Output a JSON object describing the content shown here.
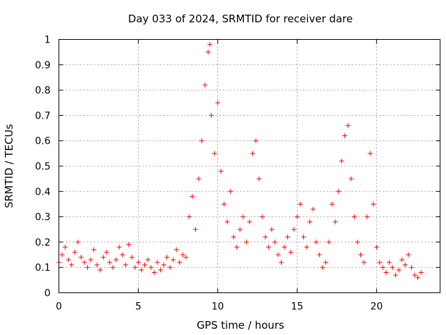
{
  "chart_data": {
    "type": "scatter",
    "title": "Day 033 of 2024, SRMTID for receiver dare",
    "xlabel": "GPS time / hours",
    "ylabel": "SRMTID / TECUs",
    "xlim": [
      0,
      24
    ],
    "ylim": [
      0,
      1
    ],
    "xticks": [
      0,
      5,
      10,
      15,
      20
    ],
    "xtick_labels": [
      "0",
      "5",
      "10",
      "15",
      "20"
    ],
    "yticks": [
      0,
      0.1,
      0.2,
      0.3,
      0.4,
      0.5,
      0.6,
      0.7,
      0.8,
      0.9,
      1
    ],
    "ytick_labels": [
      "0",
      "0.1",
      "0.2",
      "0.3",
      "0.4",
      "0.5",
      "0.6",
      "0.7",
      "0.8",
      "0.9",
      "1"
    ],
    "grid": true,
    "marker": "+",
    "color": "#ff0000",
    "series": [
      {
        "name": "SRMTID",
        "x": [
          0.0,
          0.2,
          0.4,
          0.6,
          0.8,
          1.0,
          1.2,
          1.4,
          1.6,
          1.8,
          2.0,
          2.2,
          2.4,
          2.6,
          2.8,
          3.0,
          3.2,
          3.4,
          3.6,
          3.8,
          4.0,
          4.2,
          4.4,
          4.6,
          4.8,
          5.0,
          5.2,
          5.4,
          5.6,
          5.8,
          6.0,
          6.2,
          6.4,
          6.6,
          6.8,
          7.0,
          7.2,
          7.4,
          7.6,
          7.8,
          8.0,
          8.2,
          8.4,
          8.6,
          8.8,
          9.0,
          9.2,
          9.4,
          9.5,
          9.6,
          9.8,
          10.0,
          10.2,
          10.4,
          10.6,
          10.8,
          11.0,
          11.2,
          11.4,
          11.6,
          11.8,
          12.0,
          12.2,
          12.4,
          12.6,
          12.8,
          13.0,
          13.2,
          13.4,
          13.6,
          13.8,
          14.0,
          14.2,
          14.4,
          14.6,
          14.8,
          15.0,
          15.2,
          15.4,
          15.6,
          15.8,
          16.0,
          16.2,
          16.4,
          16.6,
          16.8,
          17.0,
          17.2,
          17.4,
          17.6,
          17.8,
          18.0,
          18.2,
          18.4,
          18.6,
          18.8,
          19.0,
          19.2,
          19.4,
          19.6,
          19.8,
          20.0,
          20.2,
          20.4,
          20.6,
          20.8,
          21.0,
          21.2,
          21.4,
          21.6,
          21.8,
          22.0,
          22.2,
          22.4,
          22.6,
          22.8
        ],
        "y": [
          0.12,
          0.15,
          0.18,
          0.13,
          0.11,
          0.16,
          0.2,
          0.14,
          0.12,
          0.1,
          0.13,
          0.17,
          0.11,
          0.09,
          0.14,
          0.16,
          0.12,
          0.1,
          0.13,
          0.18,
          0.15,
          0.11,
          0.19,
          0.14,
          0.1,
          0.12,
          0.09,
          0.11,
          0.13,
          0.1,
          0.08,
          0.12,
          0.09,
          0.11,
          0.14,
          0.1,
          0.13,
          0.17,
          0.12,
          0.15,
          0.14,
          0.3,
          0.38,
          0.25,
          0.45,
          0.6,
          0.82,
          0.95,
          0.98,
          0.7,
          0.55,
          0.75,
          0.48,
          0.35,
          0.28,
          0.4,
          0.22,
          0.18,
          0.25,
          0.3,
          0.2,
          0.28,
          0.55,
          0.6,
          0.45,
          0.3,
          0.22,
          0.18,
          0.25,
          0.2,
          0.15,
          0.12,
          0.18,
          0.22,
          0.16,
          0.25,
          0.3,
          0.35,
          0.22,
          0.18,
          0.28,
          0.33,
          0.2,
          0.15,
          0.1,
          0.12,
          0.2,
          0.35,
          0.28,
          0.4,
          0.52,
          0.62,
          0.66,
          0.45,
          0.3,
          0.2,
          0.15,
          0.12,
          0.3,
          0.55,
          0.35,
          0.18,
          0.12,
          0.1,
          0.08,
          0.12,
          0.1,
          0.07,
          0.09,
          0.13,
          0.11,
          0.15,
          0.1,
          0.07,
          0.06,
          0.08
        ]
      }
    ]
  }
}
